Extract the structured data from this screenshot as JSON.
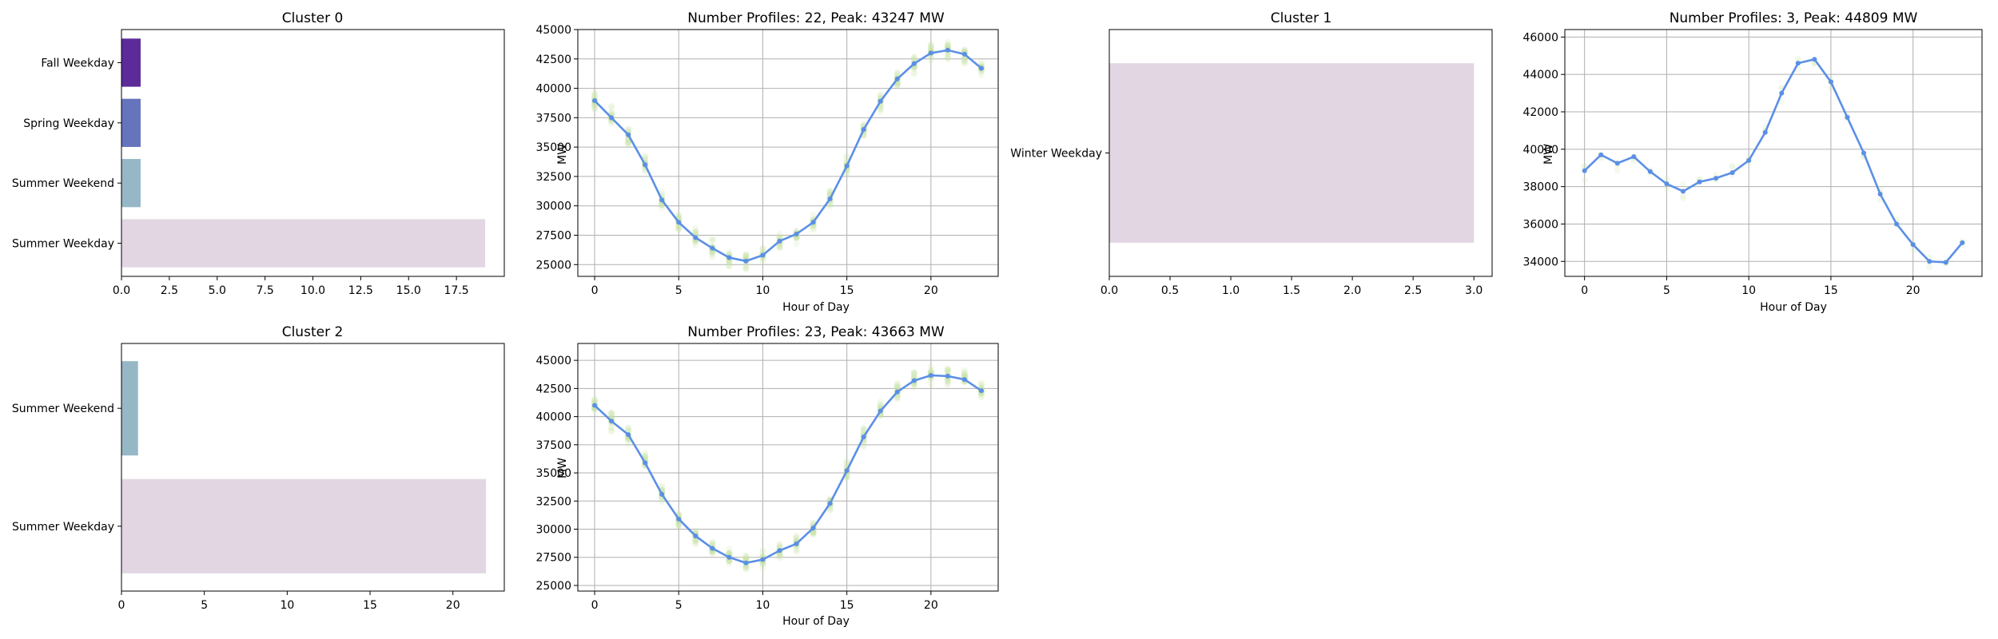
{
  "colors": {
    "fall_weekday": "#5c2a99",
    "spring_weekday": "#6673bd",
    "summer_weekend": "#96b7c6",
    "summer_weekday": "#e2d6e2",
    "winter_weekday": "#e2d6e2",
    "mean_line": "#5b8fe6",
    "profile_scatter": "#c9e6a6",
    "grid": "#b0b0b0"
  },
  "chart_data": [
    {
      "id": "c0-bar",
      "type": "bar",
      "orientation": "horizontal",
      "title": "Cluster 0",
      "categories": [
        "Summer Weekday",
        "Summer Weekend",
        "Spring Weekday",
        "Fall Weekday"
      ],
      "values": [
        19,
        1,
        1,
        1
      ],
      "bar_colors": [
        "#e2d6e2",
        "#96b7c6",
        "#6673bd",
        "#5c2a99"
      ],
      "xlim": [
        0,
        20
      ],
      "xticks": [
        "0.0",
        "2.5",
        "5.0",
        "7.5",
        "10.0",
        "12.5",
        "15.0",
        "17.5"
      ],
      "grid": false
    },
    {
      "id": "c0-line",
      "type": "line",
      "title": "Number Profiles: 22, Peak: 43247 MW",
      "xlabel": "Hour of Day",
      "ylabel": "MW",
      "x": [
        0,
        1,
        2,
        3,
        4,
        5,
        6,
        7,
        8,
        9,
        10,
        11,
        12,
        13,
        14,
        15,
        16,
        17,
        18,
        19,
        20,
        21,
        22,
        23
      ],
      "y": [
        38950,
        37500,
        36050,
        33500,
        30500,
        28600,
        27300,
        26400,
        25600,
        25300,
        25800,
        27000,
        27600,
        28600,
        30600,
        33400,
        36500,
        38900,
        40800,
        42100,
        43000,
        43247,
        42900,
        41700
      ],
      "xlim": [
        -1,
        24
      ],
      "ylim": [
        24000,
        45000
      ],
      "xticks": [
        "0",
        "5",
        "10",
        "15",
        "20"
      ],
      "yticks": [
        "25000",
        "27500",
        "30000",
        "32500",
        "35000",
        "37500",
        "40000",
        "42500",
        "45000"
      ],
      "grid": true,
      "profiles": 22
    },
    {
      "id": "c1-bar",
      "type": "bar",
      "orientation": "horizontal",
      "title": "Cluster 1",
      "categories": [
        "Winter Weekday"
      ],
      "values": [
        3
      ],
      "bar_colors": [
        "#e2d6e2"
      ],
      "xlim": [
        0,
        3.15
      ],
      "xticks": [
        "0.0",
        "0.5",
        "1.0",
        "1.5",
        "2.0",
        "2.5",
        "3.0"
      ],
      "grid": false
    },
    {
      "id": "c1-line",
      "type": "line",
      "title": "Number Profiles: 3, Peak: 44809 MW",
      "xlabel": "Hour of Day",
      "ylabel": "MW",
      "x": [
        0,
        1,
        2,
        3,
        4,
        5,
        6,
        7,
        8,
        9,
        10,
        11,
        12,
        13,
        14,
        15,
        16,
        17,
        18,
        19,
        20,
        21,
        22,
        23
      ],
      "y": [
        38850,
        39700,
        39250,
        39600,
        38800,
        38150,
        37750,
        38250,
        38450,
        38750,
        39400,
        40900,
        43000,
        44600,
        44809,
        43600,
        41700,
        39800,
        37600,
        36000,
        34900,
        34000,
        33950,
        35000
      ],
      "xlim": [
        -1.2,
        24.2
      ],
      "ylim": [
        33200,
        46400
      ],
      "xticks": [
        "0",
        "5",
        "10",
        "15",
        "20"
      ],
      "yticks": [
        "34000",
        "36000",
        "38000",
        "40000",
        "42000",
        "44000",
        "46000"
      ],
      "grid": true,
      "profiles": 3
    },
    {
      "id": "c2-bar",
      "type": "bar",
      "orientation": "horizontal",
      "title": "Cluster 2",
      "categories": [
        "Summer Weekday",
        "Summer Weekend"
      ],
      "values": [
        22,
        1
      ],
      "bar_colors": [
        "#e2d6e2",
        "#96b7c6"
      ],
      "xlim": [
        0,
        23.1
      ],
      "xticks": [
        "0",
        "5",
        "10",
        "15",
        "20"
      ],
      "grid": false
    },
    {
      "id": "c2-line",
      "type": "line",
      "title": "Number Profiles: 23, Peak: 43663 MW",
      "xlabel": "Hour of Day",
      "ylabel": "MW",
      "x": [
        0,
        1,
        2,
        3,
        4,
        5,
        6,
        7,
        8,
        9,
        10,
        11,
        12,
        13,
        14,
        15,
        16,
        17,
        18,
        19,
        20,
        21,
        22,
        23
      ],
      "y": [
        41000,
        39600,
        38400,
        35900,
        33100,
        30900,
        29400,
        28300,
        27500,
        27000,
        27300,
        28100,
        28700,
        30100,
        32300,
        35200,
        38200,
        40500,
        42200,
        43200,
        43663,
        43600,
        43300,
        42300
      ],
      "xlim": [
        -1,
        24
      ],
      "ylim": [
        24500,
        46500
      ],
      "xticks": [
        "0",
        "5",
        "10",
        "15",
        "20"
      ],
      "yticks": [
        "25000",
        "27500",
        "30000",
        "32500",
        "35000",
        "37500",
        "40000",
        "42500",
        "45000"
      ],
      "grid": true,
      "profiles": 23
    }
  ]
}
